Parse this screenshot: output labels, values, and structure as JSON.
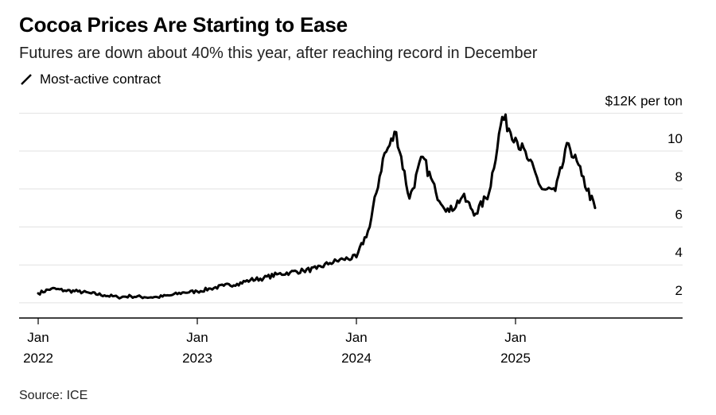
{
  "title": "Cocoa Prices Are Starting to Ease",
  "subtitle": "Futures are down about 40% this year, after reaching record in December",
  "source": "Source: ICE",
  "colors": {
    "line": "#000000",
    "grid": "#e2e2e2",
    "axis": "#000000"
  },
  "chart_data": {
    "type": "line",
    "title": "Cocoa Prices Are Starting to Ease",
    "subtitle": "Futures are down about 40% this year, after reaching record in December",
    "ylabel": "$12K per ton",
    "ylim": [
      1.2,
      12.6
    ],
    "y_ticks": [
      {
        "value": 2,
        "label": "2"
      },
      {
        "value": 4,
        "label": "4"
      },
      {
        "value": 6,
        "label": "6"
      },
      {
        "value": 8,
        "label": "8"
      },
      {
        "value": 10,
        "label": "10"
      },
      {
        "value": 12,
        "label": "$12K per ton"
      }
    ],
    "x_ticks": [
      {
        "x": "2022-01",
        "label_1": "Jan",
        "label_2": "2022"
      },
      {
        "x": "2023-01",
        "label_1": "Jan",
        "label_2": "2023"
      },
      {
        "x": "2024-01",
        "label_1": "Jan",
        "label_2": "2024"
      },
      {
        "x": "2025-01",
        "label_1": "Jan",
        "label_2": "2025"
      }
    ],
    "xlim": [
      "2022-01",
      "2025-12"
    ],
    "grid": true,
    "legend_position": "top-left",
    "series": [
      {
        "name": "Most-active contract",
        "x": [
          "2022-01",
          "2022-02",
          "2022-03",
          "2022-04",
          "2022-05",
          "2022-06",
          "2022-07",
          "2022-08",
          "2022-09",
          "2022-10",
          "2022-11",
          "2022-12",
          "2023-01",
          "2023-02",
          "2023-03",
          "2023-04",
          "2023-05",
          "2023-06",
          "2023-07",
          "2023-08",
          "2023-09",
          "2023-10",
          "2023-11",
          "2023-12",
          "2024-01",
          "2024-02",
          "2024-03",
          "2024-04",
          "2024-05",
          "2024-06",
          "2024-07",
          "2024-08",
          "2024-09",
          "2024-10",
          "2024-11",
          "2024-12",
          "2025-01",
          "2025-02",
          "2025-03",
          "2025-04",
          "2025-05",
          "2025-06",
          "2025-07"
        ],
        "values": [
          2.5,
          2.75,
          2.65,
          2.6,
          2.5,
          2.4,
          2.3,
          2.35,
          2.3,
          2.3,
          2.4,
          2.55,
          2.6,
          2.75,
          2.9,
          3.0,
          3.2,
          3.3,
          3.5,
          3.6,
          3.7,
          3.8,
          4.1,
          4.3,
          4.4,
          6.0,
          9.6,
          11.0,
          7.5,
          9.7,
          7.8,
          6.8,
          7.6,
          6.7,
          7.8,
          11.8,
          10.7,
          9.5,
          8.0,
          7.9,
          10.4,
          8.7,
          7.0
        ]
      }
    ]
  }
}
